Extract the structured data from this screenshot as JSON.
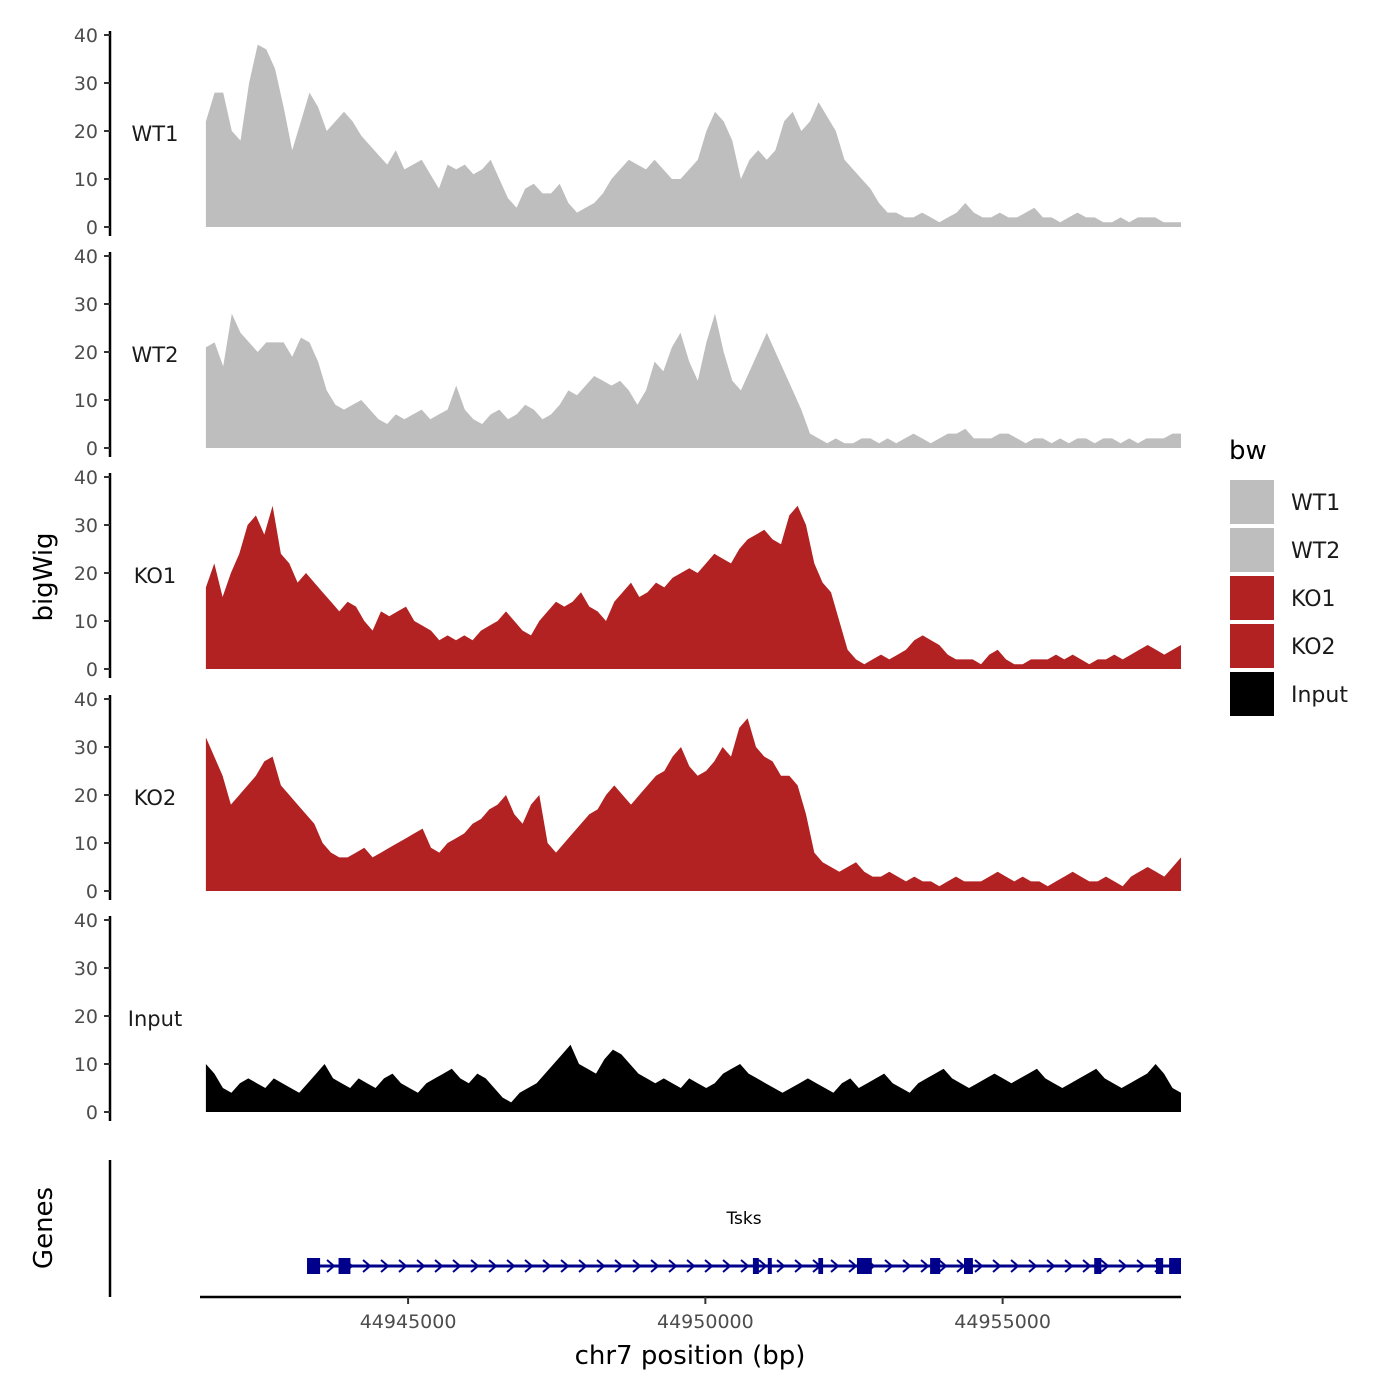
{
  "chart_data": {
    "type": "area",
    "chromosome": "chr7",
    "xlabel": "chr7 position (bp)",
    "ylabel": "bigWig",
    "ylim": [
      0,
      40
    ],
    "y_ticks": [
      "0",
      "10",
      "20",
      "30",
      "40"
    ],
    "x_range": [
      44941500,
      44958000
    ],
    "x_ticks": [
      {
        "value": 44945000,
        "label": "44945000"
      },
      {
        "value": 44950000,
        "label": "44950000"
      },
      {
        "value": 44955000,
        "label": "44955000"
      }
    ],
    "x_start": 44941600,
    "x_end": 44958000,
    "grid": false,
    "legend": {
      "title": "bw",
      "placement": "right",
      "entries": [
        {
          "label": "WT1",
          "color": "#bebebe"
        },
        {
          "label": "WT2",
          "color": "#bebebe"
        },
        {
          "label": "KO1",
          "color": "#b22222"
        },
        {
          "label": "KO2",
          "color": "#b22222"
        },
        {
          "label": "Input",
          "color": "#000000"
        }
      ]
    },
    "series": [
      {
        "name": "WT1",
        "color": "#bebebe",
        "values": [
          22,
          28,
          28,
          20,
          18,
          30,
          38,
          37,
          33,
          25,
          16,
          22,
          28,
          25,
          20,
          22,
          24,
          22,
          19,
          17,
          15,
          13,
          16,
          12,
          13,
          14,
          11,
          8,
          13,
          12,
          13,
          11,
          12,
          14,
          10,
          6,
          4,
          8,
          9,
          7,
          7,
          9,
          5,
          3,
          4,
          5,
          7,
          10,
          12,
          14,
          13,
          12,
          14,
          12,
          10,
          10,
          12,
          14,
          20,
          24,
          22,
          18,
          10,
          14,
          16,
          14,
          16,
          22,
          24,
          20,
          22,
          26,
          23,
          20,
          14,
          12,
          10,
          8,
          5,
          3,
          3,
          2,
          2,
          3,
          2,
          1,
          2,
          3,
          5,
          3,
          2,
          2,
          3,
          2,
          2,
          3,
          4,
          2,
          2,
          1,
          2,
          3,
          2,
          2,
          1,
          1,
          2,
          1,
          2,
          2,
          2,
          1,
          1,
          1
        ]
      },
      {
        "name": "WT2",
        "color": "#bebebe",
        "values": [
          21,
          22,
          17,
          28,
          24,
          22,
          20,
          22,
          22,
          22,
          19,
          23,
          22,
          18,
          12,
          9,
          8,
          9,
          10,
          8,
          6,
          5,
          7,
          6,
          7,
          8,
          6,
          7,
          8,
          13,
          8,
          6,
          5,
          7,
          8,
          6,
          7,
          9,
          8,
          6,
          7,
          9,
          12,
          11,
          13,
          15,
          14,
          13,
          14,
          12,
          9,
          12,
          18,
          16,
          21,
          24,
          18,
          14,
          22,
          28,
          20,
          14,
          12,
          16,
          20,
          24,
          20,
          16,
          12,
          8,
          3,
          2,
          1,
          2,
          1,
          1,
          2,
          2,
          1,
          2,
          1,
          2,
          3,
          2,
          1,
          2,
          3,
          3,
          4,
          2,
          2,
          2,
          3,
          3,
          2,
          1,
          2,
          2,
          1,
          2,
          1,
          2,
          2,
          1,
          2,
          2,
          1,
          2,
          1,
          2,
          2,
          2,
          3,
          3
        ]
      },
      {
        "name": "KO1",
        "color": "#b22222",
        "values": [
          17,
          22,
          15,
          20,
          24,
          30,
          32,
          28,
          34,
          24,
          22,
          18,
          20,
          18,
          16,
          14,
          12,
          14,
          13,
          10,
          8,
          12,
          11,
          12,
          13,
          10,
          9,
          8,
          6,
          7,
          6,
          7,
          6,
          8,
          9,
          10,
          12,
          10,
          8,
          7,
          10,
          12,
          14,
          13,
          14,
          16,
          13,
          12,
          10,
          14,
          16,
          18,
          15,
          16,
          18,
          17,
          19,
          20,
          21,
          20,
          22,
          24,
          23,
          22,
          25,
          27,
          28,
          29,
          27,
          26,
          32,
          34,
          30,
          22,
          18,
          16,
          10,
          4,
          2,
          1,
          2,
          3,
          2,
          3,
          4,
          6,
          7,
          6,
          5,
          3,
          2,
          2,
          2,
          1,
          3,
          4,
          2,
          1,
          1,
          2,
          2,
          2,
          3,
          2,
          3,
          2,
          1,
          2,
          2,
          3,
          2,
          3,
          4,
          5,
          4,
          3,
          4,
          5
        ]
      },
      {
        "name": "KO2",
        "color": "#b22222",
        "values": [
          32,
          28,
          24,
          18,
          20,
          22,
          24,
          27,
          28,
          22,
          20,
          18,
          16,
          14,
          10,
          8,
          7,
          7,
          8,
          9,
          7,
          8,
          9,
          10,
          11,
          12,
          13,
          9,
          8,
          10,
          11,
          12,
          14,
          15,
          17,
          18,
          20,
          16,
          14,
          18,
          20,
          10,
          8,
          10,
          12,
          14,
          16,
          17,
          20,
          22,
          20,
          18,
          20,
          22,
          24,
          25,
          28,
          30,
          26,
          24,
          25,
          27,
          30,
          28,
          34,
          36,
          30,
          28,
          27,
          24,
          24,
          22,
          16,
          8,
          6,
          5,
          4,
          5,
          6,
          4,
          3,
          3,
          4,
          3,
          2,
          3,
          2,
          2,
          1,
          2,
          3,
          2,
          2,
          2,
          3,
          4,
          3,
          2,
          3,
          2,
          2,
          1,
          2,
          3,
          4,
          3,
          2,
          2,
          3,
          2,
          1,
          3,
          4,
          5,
          4,
          3,
          5,
          7
        ]
      },
      {
        "name": "Input",
        "color": "#000000",
        "values": [
          10,
          8,
          5,
          4,
          6,
          7,
          6,
          5,
          7,
          6,
          5,
          4,
          6,
          8,
          10,
          7,
          6,
          5,
          7,
          6,
          5,
          7,
          8,
          6,
          5,
          4,
          6,
          7,
          8,
          9,
          7,
          6,
          8,
          7,
          5,
          3,
          2,
          4,
          5,
          6,
          8,
          10,
          12,
          14,
          10,
          9,
          8,
          11,
          13,
          12,
          10,
          8,
          7,
          6,
          7,
          6,
          5,
          7,
          6,
          5,
          6,
          8,
          9,
          10,
          8,
          7,
          6,
          5,
          4,
          5,
          6,
          7,
          6,
          5,
          4,
          6,
          7,
          5,
          6,
          7,
          8,
          6,
          5,
          4,
          6,
          7,
          8,
          9,
          7,
          6,
          5,
          6,
          7,
          8,
          7,
          6,
          7,
          8,
          9,
          7,
          6,
          5,
          6,
          7,
          8,
          9,
          7,
          6,
          5,
          6,
          7,
          8,
          10,
          8,
          5,
          4
        ]
      }
    ],
    "genes": {
      "ylabel": "Genes",
      "name": "Tsks",
      "strand": "+",
      "start": 44943300,
      "end": 44958000,
      "exons": [
        [
          44943300,
          44943520
        ],
        [
          44943830,
          44944030
        ],
        [
          44950800,
          44950900
        ],
        [
          44951050,
          44951110
        ],
        [
          44951900,
          44951980
        ],
        [
          44952550,
          44952800
        ],
        [
          44953780,
          44953950
        ],
        [
          44954350,
          44954500
        ],
        [
          44956540,
          44956660
        ],
        [
          44957580,
          44957700
        ],
        [
          44957800,
          44958000
        ]
      ]
    }
  }
}
